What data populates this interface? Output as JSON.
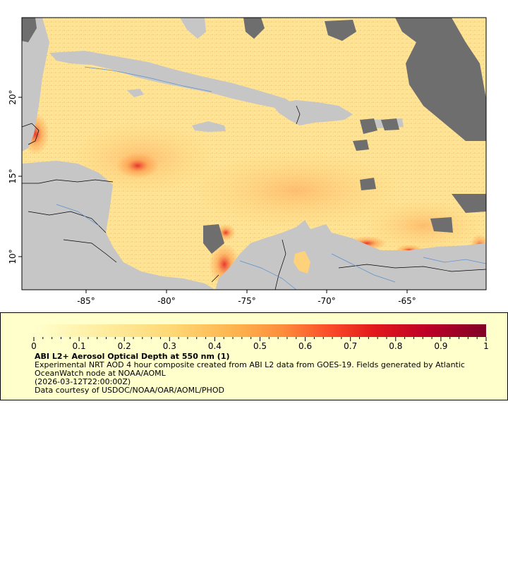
{
  "map": {
    "lon_ticks": [
      "-85°",
      "-80°",
      "-75°",
      "-70°",
      "-65°"
    ],
    "lat_ticks": [
      "10°",
      "15°",
      "20°"
    ],
    "colors": {
      "land": "#c6c6c6",
      "cloud": "#6e6e6e",
      "border": "#000000",
      "river": "#5b8fd0",
      "aod_low": "#ffffcc",
      "aod_mid": "#fd8d3c",
      "aod_high": "#800026"
    }
  },
  "legend": {
    "ticks": [
      "0",
      "0.1",
      "0.2",
      "0.3",
      "0.4",
      "0.5",
      "0.6",
      "0.7",
      "0.8",
      "0.9",
      "1"
    ],
    "title": "ABI L2+ Aerosol Optical Depth at 550 nm (1)",
    "description": "Experimental NRT AOD 4 hour composite created from ABI L2 data from GOES-19. Fields generated by Atlantic OceanWatch node at NOAA/AOML",
    "timestamp": "(2026-03-12T22:00:00Z)",
    "credit": "Data courtesy of USDOC/NOAA/OAR/AOML/PHOD"
  }
}
